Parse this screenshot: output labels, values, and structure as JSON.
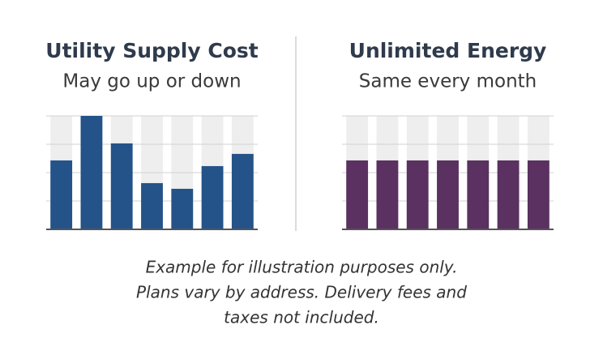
{
  "chart_data": [
    {
      "type": "bar",
      "title": "Utility Supply Cost",
      "subtitle": "May go up or down",
      "values": [
        2.43,
        4.0,
        3.03,
        1.63,
        1.43,
        2.23,
        2.66
      ],
      "color": "#245389",
      "ylim": [
        0,
        4
      ],
      "yticks": [
        0,
        1,
        2,
        3,
        4
      ],
      "grid": true
    },
    {
      "type": "bar",
      "title": "Unlimited Energy",
      "subtitle": "Same every month",
      "values": [
        2.43,
        2.43,
        2.43,
        2.43,
        2.43,
        2.43,
        2.43
      ],
      "color": "#5a3160",
      "ylim": [
        0,
        4
      ],
      "yticks": [
        0,
        1,
        2,
        3,
        4
      ],
      "grid": true
    }
  ],
  "footnote": [
    "Example for illustration purposes only.",
    "Plans vary by address. Delivery fees and",
    "taxes not included."
  ]
}
